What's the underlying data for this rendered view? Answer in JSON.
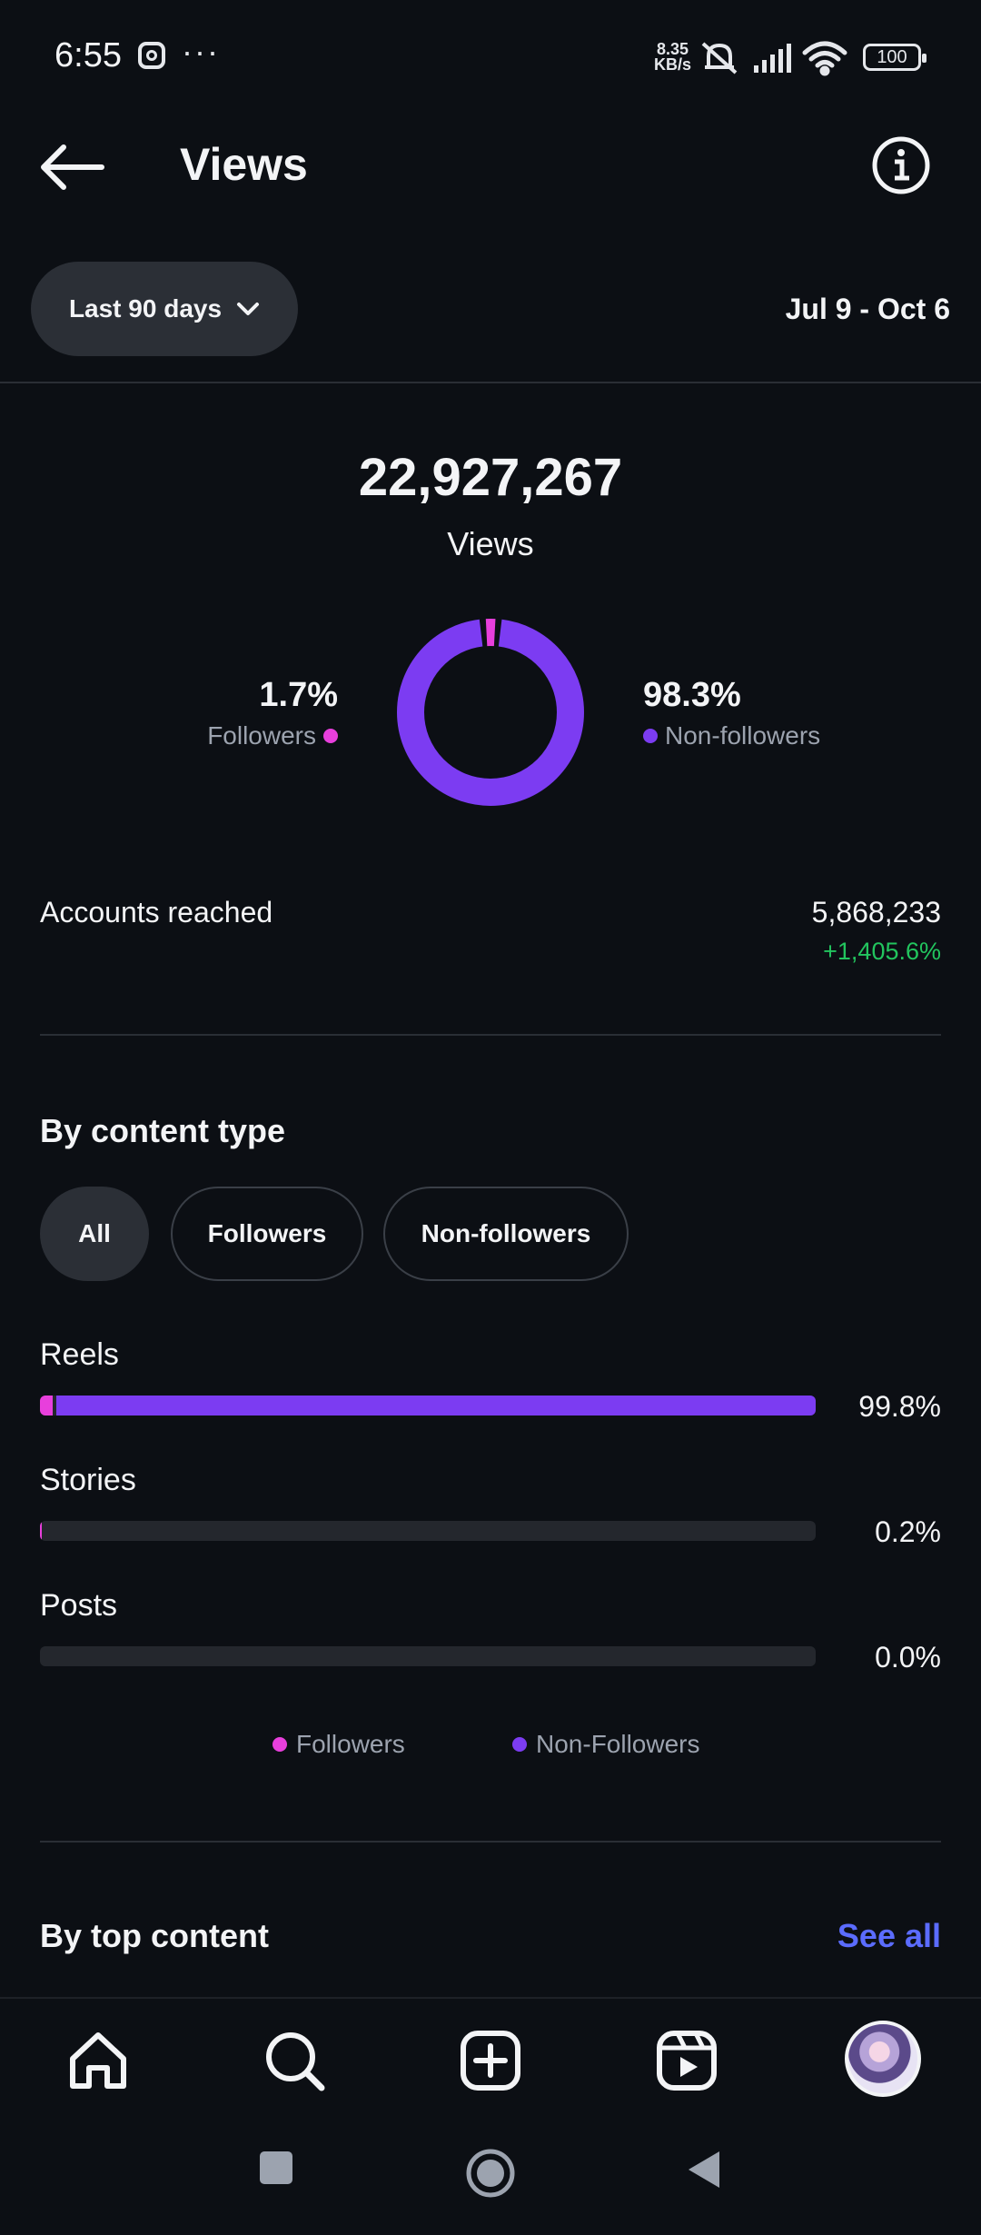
{
  "status_bar": {
    "time": "6:55",
    "dots": "···",
    "net_speed_value": "8.35",
    "net_speed_unit": "KB/s",
    "battery": "100"
  },
  "header": {
    "title": "Views"
  },
  "filter": {
    "range_label": "Last 90 days",
    "date_range": "Jul 9 - Oct 6"
  },
  "summary": {
    "total_views": "22,927,267",
    "total_label": "Views",
    "followers_pct": "1.7%",
    "followers_label": "Followers",
    "non_followers_pct": "98.3%",
    "non_followers_label": "Non-followers",
    "followers_fraction": 0.017,
    "non_followers_fraction": 0.983
  },
  "accounts_reached": {
    "label": "Accounts reached",
    "value": "5,868,233",
    "change": "+1,405.6%"
  },
  "content_type": {
    "title": "By content type",
    "chips": [
      "All",
      "Followers",
      "Non-followers"
    ],
    "selected_chip": "All",
    "rows": [
      {
        "label": "Reels",
        "pct": "99.8%",
        "followers_fraction": 0.016,
        "non_followers_fraction": 0.982
      },
      {
        "label": "Stories",
        "pct": "0.2%",
        "followers_fraction": 0.002,
        "non_followers_fraction": 0.0
      },
      {
        "label": "Posts",
        "pct": "0.0%",
        "followers_fraction": 0.0,
        "non_followers_fraction": 0.0
      }
    ],
    "legend_followers": "Followers",
    "legend_non_followers": "Non-Followers"
  },
  "top_content": {
    "title": "By top content",
    "see_all": "See all"
  },
  "colors": {
    "followers": "#e83fdc",
    "non_followers": "#7c3cf2",
    "positive": "#22c55e",
    "link": "#5b6cff"
  },
  "nav": {
    "icons": [
      "home-icon",
      "search-icon",
      "create-icon",
      "reels-icon",
      "profile-avatar"
    ]
  }
}
